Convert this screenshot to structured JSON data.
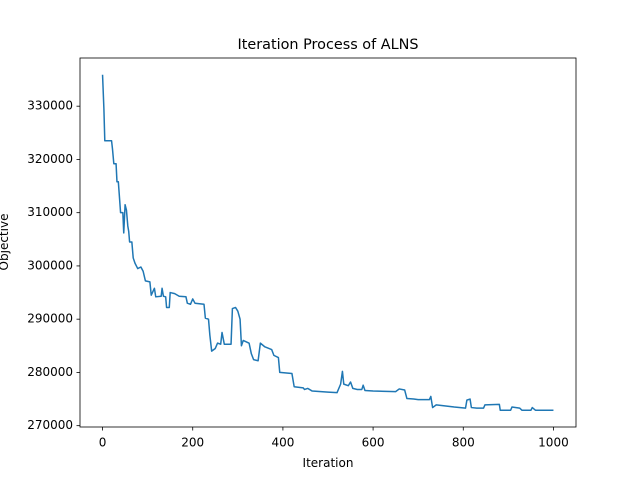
{
  "chart_data": {
    "type": "line",
    "title": "Iteration Process of ALNS",
    "xlabel": "Iteration",
    "ylabel": "Objective",
    "x": [
      0,
      3,
      5,
      20,
      22,
      25,
      30,
      32,
      35,
      37,
      40,
      45,
      47,
      50,
      53,
      56,
      58,
      60,
      65,
      68,
      72,
      78,
      85,
      90,
      95,
      105,
      108,
      115,
      118,
      130,
      132,
      135,
      140,
      142,
      148,
      150,
      160,
      170,
      185,
      188,
      195,
      200,
      205,
      225,
      228,
      235,
      238,
      242,
      250,
      255,
      262,
      265,
      270,
      285,
      288,
      295,
      300,
      305,
      308,
      312,
      325,
      330,
      335,
      345,
      350,
      360,
      375,
      380,
      390,
      393,
      420,
      425,
      445,
      448,
      455,
      465,
      500,
      520,
      528,
      532,
      535,
      545,
      550,
      555,
      565,
      575,
      578,
      582,
      600,
      650,
      658,
      670,
      675,
      690,
      700,
      725,
      728,
      732,
      740,
      780,
      805,
      808,
      815,
      818,
      830,
      845,
      848,
      880,
      882,
      905,
      908,
      925,
      930,
      950,
      953,
      960,
      1000
    ],
    "series": [
      {
        "name": "Objective",
        "color": "#1f77b4",
        "values": [
          335900,
          329500,
          323500,
          323500,
          322000,
          319200,
          319200,
          315800,
          315800,
          313500,
          310000,
          310000,
          306200,
          311500,
          310500,
          307500,
          306500,
          304500,
          304500,
          301500,
          300500,
          299500,
          299800,
          299000,
          297200,
          297000,
          294500,
          295800,
          294200,
          294300,
          295800,
          294300,
          294200,
          292200,
          292200,
          295000,
          294800,
          294300,
          294200,
          293000,
          292800,
          293800,
          293000,
          292800,
          290200,
          290000,
          287000,
          284000,
          284500,
          285500,
          285300,
          287500,
          285300,
          285300,
          292000,
          292200,
          291500,
          290000,
          285000,
          286000,
          285500,
          283500,
          282400,
          282200,
          285500,
          284800,
          284300,
          283200,
          282800,
          280000,
          279800,
          277300,
          277100,
          276800,
          277000,
          276500,
          276300,
          276200,
          277800,
          280200,
          277800,
          277500,
          278200,
          277000,
          276800,
          276800,
          277600,
          276600,
          276500,
          276400,
          276900,
          276700,
          275100,
          275000,
          274900,
          274900,
          275500,
          273400,
          273900,
          273500,
          273300,
          274800,
          275000,
          273400,
          273300,
          273300,
          273900,
          274000,
          272900,
          272900,
          273500,
          273300,
          272900,
          272900,
          273400,
          272900,
          272900
        ]
      }
    ],
    "xlim": [
      -50,
      1050
    ],
    "ylim": [
      269750,
      339050
    ],
    "xticks": [
      0,
      200,
      400,
      600,
      800,
      1000
    ],
    "yticks": [
      270000,
      280000,
      290000,
      300000,
      310000,
      320000,
      330000
    ]
  }
}
